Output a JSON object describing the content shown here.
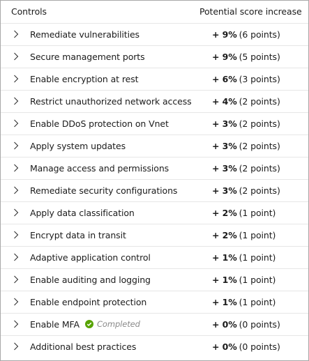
{
  "header": {
    "controls_label": "Controls",
    "score_label": "Potential score increase"
  },
  "rows": [
    {
      "label": "Remediate vulnerabilities",
      "percent": "+ 9%",
      "points": "(6 points)"
    },
    {
      "label": "Secure management ports",
      "percent": "+ 9%",
      "points": "(5 points)"
    },
    {
      "label": "Enable encryption at rest",
      "percent": "+ 6%",
      "points": "(3 points)"
    },
    {
      "label": "Restrict unauthorized network access",
      "percent": "+ 4%",
      "points": "(2 points)"
    },
    {
      "label": "Enable DDoS protection on Vnet",
      "percent": "+ 3%",
      "points": "(2 points)"
    },
    {
      "label": "Apply system updates",
      "percent": "+ 3%",
      "points": "(2 points)"
    },
    {
      "label": "Manage access and permissions",
      "percent": "+ 3%",
      "points": "(2 points)"
    },
    {
      "label": "Remediate security configurations",
      "percent": "+ 3%",
      "points": "(2 points)"
    },
    {
      "label": "Apply data classification",
      "percent": "+ 2%",
      "points": "(1 point)"
    },
    {
      "label": "Encrypt data in transit",
      "percent": "+ 2%",
      "points": "(1 point)"
    },
    {
      "label": "Adaptive application control",
      "percent": "+ 1%",
      "points": "(1 point)"
    },
    {
      "label": "Enable auditing and logging",
      "percent": "+ 1%",
      "points": "(1 point)"
    },
    {
      "label": "Enable endpoint protection",
      "percent": "+ 1%",
      "points": "(1 point)"
    },
    {
      "label": "Enable MFA",
      "status": "Completed",
      "percent": "+ 0%",
      "points": "(0 points)"
    },
    {
      "label": "Additional best practices",
      "percent": "+ 0%",
      "points": "(0 points)"
    }
  ],
  "icons": {
    "row_expand": "chevron-right-icon",
    "completed_status": "check-circle-icon"
  },
  "colors": {
    "completed_check": "#57a300",
    "completed_text": "#8a8a8a",
    "divider": "#e6e6e6",
    "border": "#a8a8a8"
  }
}
